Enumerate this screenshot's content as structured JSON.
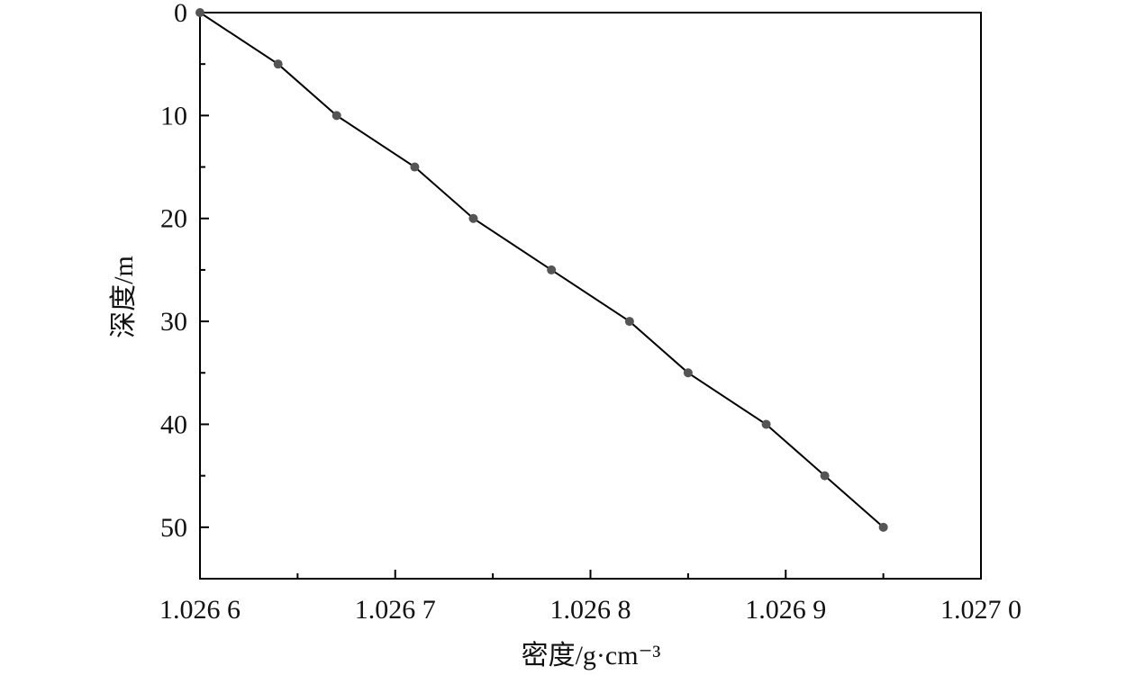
{
  "chart_data": {
    "type": "line",
    "title": "",
    "xlabel": "密度/g·cm⁻³",
    "ylabel": "深度/m",
    "xlim": [
      1.0266,
      1.027
    ],
    "ylim": [
      0,
      55
    ],
    "y_inverted": true,
    "x_ticks": [
      1.0266,
      1.0267,
      1.0268,
      1.0269,
      1.027
    ],
    "x_tick_labels": [
      "1.026 6",
      "1.026 7",
      "1.026 8",
      "1.026 9",
      "1.027 0"
    ],
    "y_ticks": [
      0,
      10,
      20,
      30,
      40,
      50
    ],
    "y_tick_labels": [
      "0",
      "10",
      "20",
      "30",
      "40",
      "50"
    ],
    "grid": false,
    "legend": "none",
    "series": [
      {
        "x": [
          1.0266,
          1.02664,
          1.02667,
          1.02671,
          1.02674,
          1.02678,
          1.02682,
          1.02685,
          1.02689,
          1.02692,
          1.02695
        ],
        "y": [
          0,
          5,
          10,
          15,
          20,
          25,
          30,
          35,
          40,
          45,
          50
        ],
        "line_color": "#000000",
        "marker_color": "#555555"
      }
    ]
  }
}
